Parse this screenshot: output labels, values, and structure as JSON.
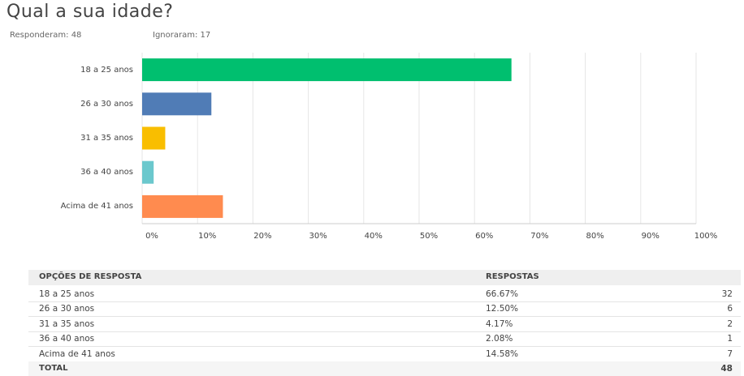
{
  "header": {
    "title": "Qual a sua idade?",
    "answered": "Responderam: 48",
    "skipped": "Ignoraram: 17"
  },
  "chart_data": {
    "type": "hbar",
    "categories": [
      "18 a 25 anos",
      "26 a 30 anos",
      "31 a 35 anos",
      "36 a 40 anos",
      "Acima de 41 anos"
    ],
    "values": [
      66.67,
      12.5,
      4.17,
      2.08,
      14.58
    ],
    "colors": [
      "#00bf6f",
      "#507cb6",
      "#f9be00",
      "#6bc8cd",
      "#ff8b4f"
    ],
    "xlim": [
      0,
      100
    ],
    "xticks": [
      {
        "value": 0,
        "label": "0%"
      },
      {
        "value": 10,
        "label": "10%"
      },
      {
        "value": 20,
        "label": "20%"
      },
      {
        "value": 30,
        "label": "30%"
      },
      {
        "value": 40,
        "label": "40%"
      },
      {
        "value": 50,
        "label": "50%"
      },
      {
        "value": 60,
        "label": "60%"
      },
      {
        "value": 70,
        "label": "70%"
      },
      {
        "value": 80,
        "label": "80%"
      },
      {
        "value": 90,
        "label": "90%"
      },
      {
        "value": 100,
        "label": "100%"
      }
    ],
    "grid": true
  },
  "table": {
    "header": [
      "OPÇÕES DE RESPOSTA",
      "RESPOSTAS"
    ],
    "rows": [
      [
        "18 a 25 anos",
        "66.67%",
        "32"
      ],
      [
        "26 a 30 anos",
        "12.50%",
        "6"
      ],
      [
        "31 a 35 anos",
        "4.17%",
        "2"
      ],
      [
        "36 a 40 anos",
        "2.08%",
        "1"
      ],
      [
        "Acima de 41 anos",
        "14.58%",
        "7"
      ]
    ],
    "total": [
      "TOTAL",
      "48"
    ]
  }
}
